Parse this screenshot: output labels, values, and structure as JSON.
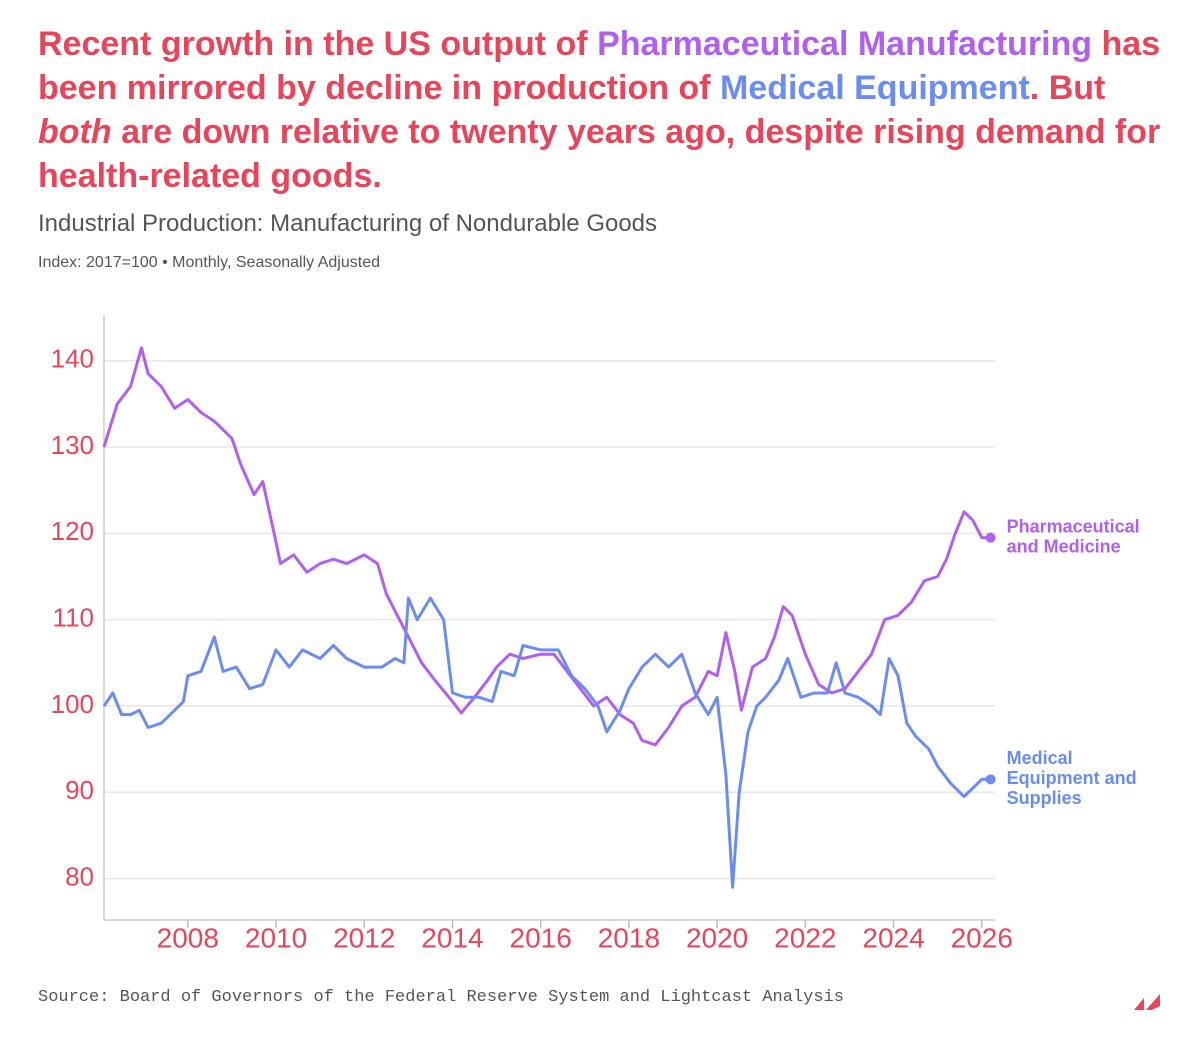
{
  "chart_data": {
    "type": "line",
    "title_parts": [
      {
        "text": "Recent growth in the US output of ",
        "color": "#e8455a",
        "italic": false
      },
      {
        "text": "Pharmaceutical Manufacturing",
        "color": "#b15ff0",
        "italic": false
      },
      {
        "text": " has been mirrored by decline in production of ",
        "color": "#e8455a",
        "italic": false
      },
      {
        "text": "Medical Equipment",
        "color": "#6b8cf0",
        "italic": false
      },
      {
        "text": ". But ",
        "color": "#e8455a",
        "italic": false
      },
      {
        "text": "both",
        "color": "#e8455a",
        "italic": true
      },
      {
        "text": " are down relative to twenty years ago, despite rising demand for health-related goods.",
        "color": "#e8455a",
        "italic": false
      }
    ],
    "subtitle": "Industrial Production: Manufacturing of Nondurable Goods",
    "note": "Index: 2017=100 • Monthly, Seasonally Adjusted",
    "source": "Source: Board of Governors of the Federal Reserve System and Lightcast Analysis",
    "xlim": [
      2006.1,
      2026.3
    ],
    "xticks": [
      2008,
      2010,
      2012,
      2014,
      2016,
      2018,
      2020,
      2022,
      2024,
      2026
    ],
    "ylim": [
      75.2,
      145.3
    ],
    "yticks": [
      80,
      90,
      100,
      110,
      120,
      130,
      140
    ],
    "grid": true,
    "tick_color": "#e8455a",
    "series": [
      {
        "name": "Pharmaceutical and Medicine",
        "label_lines": [
          "Pharmaceutical",
          "and Medicine"
        ],
        "color": "#b15ff0",
        "x": [
          2006.1,
          2006.4,
          2006.7,
          2006.95,
          2007.1,
          2007.4,
          2007.7,
          2008.0,
          2008.3,
          2008.6,
          2009.0,
          2009.2,
          2009.5,
          2009.7,
          2010.0,
          2010.1,
          2010.4,
          2010.7,
          2011.0,
          2011.3,
          2011.6,
          2012.0,
          2012.3,
          2012.5,
          2012.8,
          2013.0,
          2013.3,
          2013.6,
          2014.0,
          2014.2,
          2014.5,
          2014.8,
          2015.0,
          2015.3,
          2015.6,
          2016.0,
          2016.3,
          2016.6,
          2016.9,
          2017.2,
          2017.5,
          2017.8,
          2018.1,
          2018.3,
          2018.6,
          2018.9,
          2019.2,
          2019.5,
          2019.8,
          2020.0,
          2020.2,
          2020.4,
          2020.55,
          2020.8,
          2021.1,
          2021.3,
          2021.5,
          2021.7,
          2022.0,
          2022.3,
          2022.6,
          2022.9,
          2023.2,
          2023.5,
          2023.8,
          2024.1,
          2024.4,
          2024.7,
          2025.0,
          2025.2,
          2025.4,
          2025.6,
          2025.8,
          2026.0,
          2026.2
        ],
        "values": [
          130,
          135,
          137,
          141.5,
          138.5,
          137,
          134.5,
          135.5,
          134,
          133,
          131,
          128,
          124.5,
          126,
          119,
          116.5,
          117.5,
          115.5,
          116.5,
          117,
          116.5,
          117.5,
          116.5,
          113,
          110,
          108,
          105,
          103,
          100.5,
          99.2,
          101,
          103,
          104.5,
          106,
          105.5,
          106,
          106,
          104,
          102,
          100,
          101,
          99,
          98,
          96,
          95.5,
          97.5,
          100,
          101,
          104,
          103.5,
          108.5,
          104,
          99.5,
          104.5,
          105.5,
          108,
          111.5,
          110.5,
          106,
          102.5,
          101.5,
          102,
          104,
          106,
          110,
          110.5,
          112,
          114.5,
          115,
          117,
          120,
          122.5,
          121.5,
          119.5,
          119.5
        ]
      },
      {
        "name": "Medical Equipment and Supplies",
        "label_lines": [
          "Medical",
          "Equipment and",
          "Supplies"
        ],
        "color": "#6b8cf0",
        "x": [
          2006.1,
          2006.3,
          2006.5,
          2006.7,
          2006.9,
          2007.1,
          2007.4,
          2007.7,
          2007.9,
          2008.0,
          2008.3,
          2008.6,
          2008.8,
          2009.1,
          2009.4,
          2009.7,
          2010.0,
          2010.3,
          2010.6,
          2011.0,
          2011.3,
          2011.6,
          2012.0,
          2012.4,
          2012.7,
          2012.9,
          2013.0,
          2013.2,
          2013.5,
          2013.8,
          2014.0,
          2014.3,
          2014.6,
          2014.9,
          2015.1,
          2015.4,
          2015.6,
          2016.0,
          2016.4,
          2016.7,
          2017.0,
          2017.3,
          2017.5,
          2017.8,
          2018.0,
          2018.3,
          2018.6,
          2018.9,
          2019.2,
          2019.5,
          2019.8,
          2020.0,
          2020.2,
          2020.35,
          2020.5,
          2020.7,
          2020.9,
          2021.1,
          2021.4,
          2021.6,
          2021.9,
          2022.2,
          2022.5,
          2022.7,
          2022.9,
          2023.2,
          2023.5,
          2023.7,
          2023.9,
          2024.1,
          2024.3,
          2024.5,
          2024.8,
          2025.0,
          2025.3,
          2025.6,
          2025.8,
          2026.0,
          2026.2
        ],
        "values": [
          100,
          101.5,
          99,
          99,
          99.5,
          97.5,
          98,
          99.5,
          100.5,
          103.5,
          104,
          108,
          104,
          104.5,
          102,
          102.5,
          106.5,
          104.5,
          106.5,
          105.5,
          107,
          105.5,
          104.5,
          104.5,
          105.5,
          105,
          112.5,
          110,
          112.5,
          110,
          101.5,
          101,
          101,
          100.5,
          104,
          103.5,
          107,
          106.5,
          106.5,
          103.5,
          102,
          100,
          97,
          99.5,
          102,
          104.5,
          106,
          104.5,
          106,
          101.5,
          99,
          101,
          92,
          79,
          90,
          97,
          100,
          101,
          103,
          105.5,
          101,
          101.5,
          101.5,
          105,
          101.5,
          101,
          100,
          99,
          105.5,
          103.5,
          98,
          96.5,
          95,
          93,
          91,
          89.5,
          90.5,
          91.5,
          91.5
        ]
      }
    ]
  }
}
